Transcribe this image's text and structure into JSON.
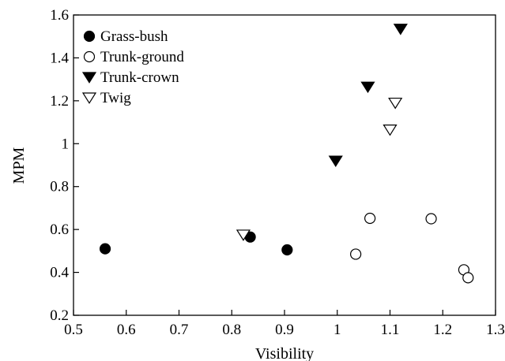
{
  "chart_data": {
    "type": "scatter",
    "xlabel": "Visibility",
    "ylabel": "MPM",
    "xlim": [
      0.5,
      1.3
    ],
    "ylim": [
      0.2,
      1.6
    ],
    "xticks": [
      "0.5",
      "0.6",
      "0.7",
      "0.8",
      "0.9",
      "1",
      "1.1",
      "1.2",
      "1.3"
    ],
    "yticks": [
      "0.2",
      "0.4",
      "0.6",
      "0.8",
      "1",
      "1.2",
      "1.4",
      "1.6"
    ],
    "grid": false,
    "legend_position": "top-left",
    "series": [
      {
        "name": "Grass-bush",
        "marker": "circle-filled",
        "points": [
          [
            0.56,
            0.51
          ],
          [
            0.835,
            0.565
          ],
          [
            0.905,
            0.505
          ]
        ]
      },
      {
        "name": "Trunk-ground",
        "marker": "circle-open",
        "points": [
          [
            1.035,
            0.485
          ],
          [
            1.062,
            0.652
          ],
          [
            1.178,
            0.65
          ],
          [
            1.24,
            0.412
          ],
          [
            1.248,
            0.375
          ]
        ]
      },
      {
        "name": "Trunk-crown",
        "marker": "triangle-down-filled",
        "points": [
          [
            0.997,
            0.92
          ],
          [
            1.058,
            1.265
          ],
          [
            1.12,
            1.535
          ]
        ]
      },
      {
        "name": "Twig",
        "marker": "triangle-down-open",
        "points": [
          [
            0.822,
            0.575
          ],
          [
            1.1,
            1.065
          ],
          [
            1.11,
            1.19
          ]
        ]
      }
    ]
  }
}
